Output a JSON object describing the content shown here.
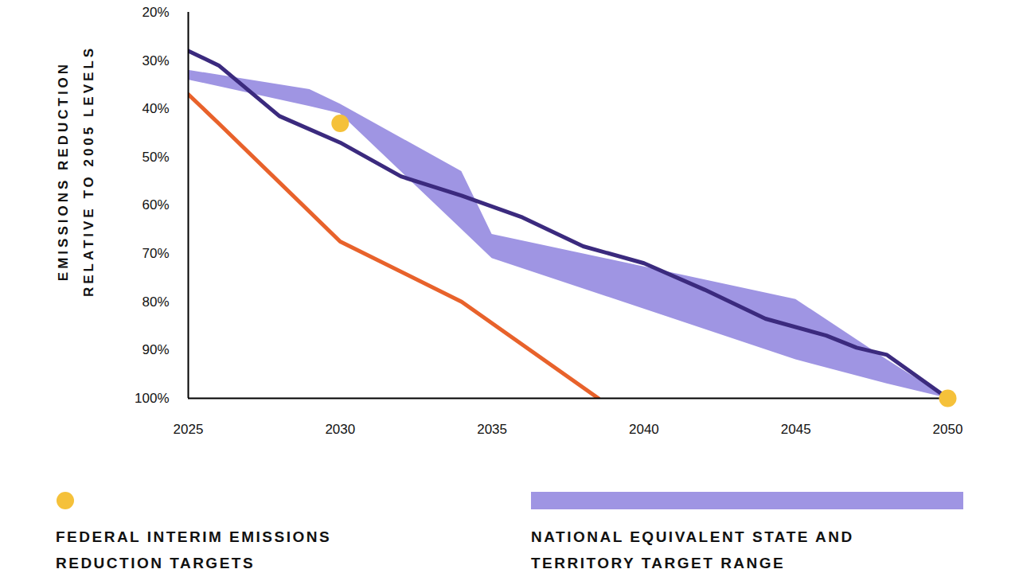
{
  "chart_data": {
    "type": "line",
    "ylabel": "EMISSIONS REDUCTION\nRELATIVE TO 2005 LEVELS",
    "xlim": [
      2025,
      2050
    ],
    "xticks": [
      2025,
      2030,
      2035,
      2040,
      2045,
      2050
    ],
    "ylim": [
      100,
      20
    ],
    "yticks": [
      {
        "value": 20,
        "label": "20%"
      },
      {
        "value": 30,
        "label": "30%"
      },
      {
        "value": 40,
        "label": "40%"
      },
      {
        "value": 50,
        "label": "50%"
      },
      {
        "value": 60,
        "label": "60%"
      },
      {
        "value": 70,
        "label": "70%"
      },
      {
        "value": 80,
        "label": "80%"
      },
      {
        "value": 90,
        "label": "90%"
      },
      {
        "value": 100,
        "label": "100%"
      }
    ],
    "grid": false,
    "legend": "bottom",
    "series": [
      {
        "name": "NATIONAL EQUIVALENT STATE AND\nTERRITORY TARGET RANGE",
        "type": "area",
        "color": "#9f95e3",
        "x": [
          2025,
          2029,
          2030,
          2034,
          2035,
          2045,
          2048,
          2050
        ],
        "low": [
          32,
          36,
          39,
          53,
          66,
          79.5,
          92,
          100
        ],
        "high": [
          34,
          39.5,
          41,
          65,
          71,
          92,
          97,
          100
        ]
      },
      {
        "name": null,
        "type": "line",
        "color": "#e8622b",
        "x": [
          2025,
          2026,
          2030,
          2034,
          2038.5
        ],
        "values": [
          37,
          43,
          67.5,
          80,
          100
        ]
      },
      {
        "name": null,
        "type": "line",
        "color": "#3b2a7e",
        "x": [
          2025,
          2026,
          2028,
          2030,
          2032,
          2034,
          2036,
          2038,
          2040,
          2042,
          2044,
          2046,
          2047,
          2048,
          2050
        ],
        "values": [
          28,
          31,
          41.5,
          47,
          54,
          58,
          62.5,
          68.5,
          72,
          77.5,
          83.5,
          87,
          89.5,
          91,
          100
        ]
      },
      {
        "name": "FEDERAL INTERIM EMISSIONS\nREDUCTION TARGETS",
        "type": "scatter",
        "marker": "dot",
        "color": "#f5c13a",
        "x": [
          2030,
          2050
        ],
        "values": [
          43,
          100
        ]
      }
    ]
  }
}
